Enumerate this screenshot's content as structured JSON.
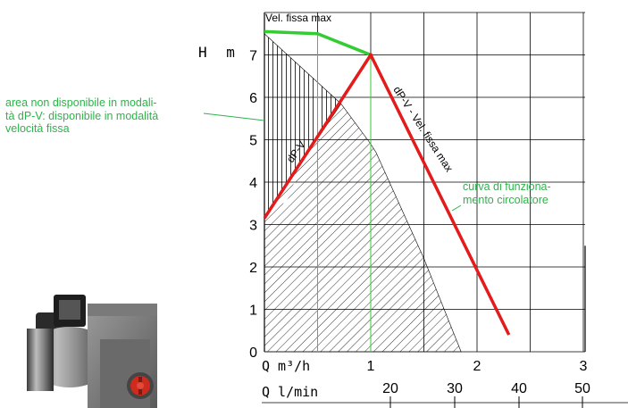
{
  "axis": {
    "h_label": "H m",
    "q_label_m3h": "Q m³/h",
    "q_label_lmin": "Q l/min",
    "h_ticks": [
      "0",
      "1",
      "2",
      "3",
      "4",
      "5",
      "6",
      "7"
    ],
    "q_ticks_m3h": [
      "1",
      "2",
      "3"
    ],
    "q_ticks_lmin": [
      "20",
      "30",
      "40",
      "50"
    ]
  },
  "labels": {
    "vel_fissa_max": "Vel. fissa max",
    "dpv": "dP-V",
    "dpv_vel": "dP-V - Vel. fissa max"
  },
  "notes": {
    "area_line1": "area non disponibile in modali-",
    "area_line2": "tà dP-V: disponibile in modalità",
    "area_line3": "velocità fissa",
    "curve_line1": "curva di funziona-",
    "curve_line2": "mento circolatore"
  },
  "chart_data": {
    "type": "line",
    "series": [
      {
        "name": "Vel. fissa max",
        "x": [
          0,
          0.5,
          1
        ],
        "y": [
          7.55,
          7.5,
          7
        ],
        "color": "#33cc33"
      },
      {
        "name": "dP-V",
        "x": [
          0,
          1,
          2.3
        ],
        "y": [
          3.15,
          7,
          0.4
        ],
        "color": "#e31b1b"
      }
    ],
    "xlim": [
      0,
      3
    ],
    "ylim": [
      0,
      7.7
    ],
    "grid": true
  },
  "colors": {
    "red_curve": "#e31b1b",
    "green_curve": "#33cc33",
    "green_text": "#2db34a",
    "grid": "#000000"
  },
  "icons": {
    "pump": "circulator-pump-icon"
  }
}
